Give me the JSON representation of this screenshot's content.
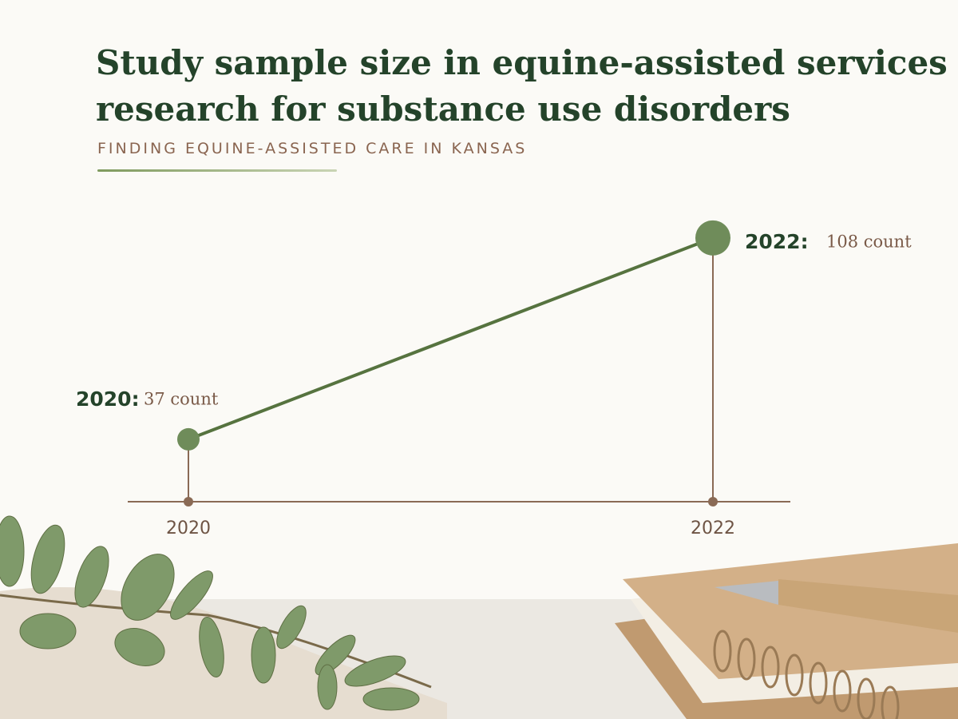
{
  "chart_data": {
    "type": "line",
    "title": "Study sample size in equine-assisted services research for substance use disorders",
    "subtitle": "FINDING EQUINE-ASSISTED CARE IN KANSAS",
    "categories": [
      "2020",
      "2022"
    ],
    "values": [
      37,
      108
    ],
    "point_labels": [
      "2020:",
      "2022:"
    ],
    "value_labels": [
      "37 count",
      "108 count"
    ],
    "color": "#56733f",
    "ylim": [
      15,
      115
    ]
  }
}
